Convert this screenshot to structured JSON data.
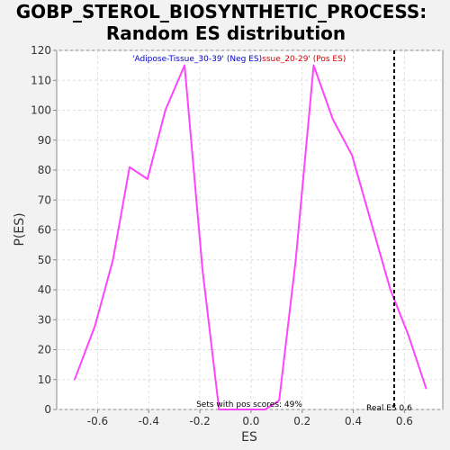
{
  "chart_data": {
    "type": "line",
    "title_line1": "GOBP_STEROL_BIOSYNTHETIC_PROCESS:",
    "title_line2": "Random ES distribution",
    "xlabel": "ES",
    "ylabel": "P(ES)",
    "xlim": [
      -0.76,
      0.75
    ],
    "ylim": [
      0,
      120
    ],
    "grid": true,
    "x_ticks": [
      -0.6,
      -0.4,
      -0.2,
      0.0,
      0.2,
      0.4,
      0.6
    ],
    "x_tick_labels": [
      "-0.6",
      "-0.4",
      "-0.2",
      "0.0",
      "0.2",
      "0.4",
      "0.6"
    ],
    "y_ticks": [
      0,
      10,
      20,
      30,
      40,
      50,
      60,
      70,
      80,
      90,
      100,
      110,
      120
    ],
    "y_tick_labels": [
      "0",
      "10",
      "20",
      "30",
      "40",
      "50",
      "60",
      "70",
      "80",
      "90",
      "100",
      "110",
      "120"
    ],
    "series": [
      {
        "color": "#ff44ff",
        "x": [
          -0.69,
          -0.61,
          -0.54,
          -0.475,
          -0.405,
          -0.335,
          -0.26,
          -0.19,
          -0.125,
          -0.06,
          0.0,
          0.055,
          0.11,
          0.175,
          0.245,
          0.32,
          0.395,
          0.465,
          0.545,
          0.615,
          0.685
        ],
        "y": [
          10,
          28,
          50,
          81,
          77,
          100,
          115,
          47,
          0,
          0,
          0,
          0,
          3,
          50,
          115,
          97,
          85,
          64,
          40,
          25,
          7
        ]
      }
    ],
    "real_es": 0.56,
    "annotations": {
      "neg_label": "'Adipose-Tissue_30-39' (Neg ES)",
      "pos_label": "ssue_20-29' (Pos ES)",
      "pos_scores": "Sets with pos scores: 49%",
      "real_es_label": "Real ES 0.6"
    },
    "colors": {
      "line": "#ff44ff",
      "neg_label": "#0000cc",
      "pos_label": "#cc0000",
      "real_es_line": "#000000",
      "grid": "#dddddd"
    }
  }
}
